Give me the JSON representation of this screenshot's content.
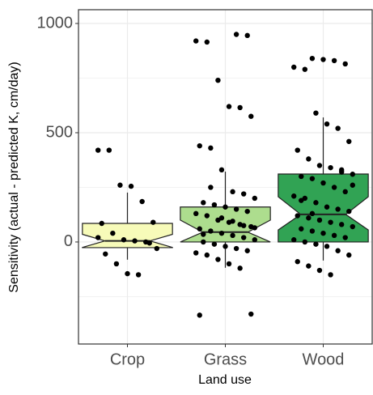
{
  "chart_data": {
    "type": "boxplot",
    "xlabel": "Land use",
    "ylabel": "Sensitivity (actual - predicted K, cm/day)",
    "categories": [
      "Crop",
      "Grass",
      "Wood"
    ],
    "colors": [
      "#f7fbb9",
      "#addd8e",
      "#31a354"
    ],
    "boxes": [
      {
        "whislo": -81,
        "q1": -26,
        "med": 5,
        "q3": 85,
        "whishi": 226,
        "notch_lo": -25,
        "notch_hi": 35
      },
      {
        "whislo": -118,
        "q1": 0,
        "med": 45,
        "q3": 160,
        "whishi": 322,
        "notch_lo": 0,
        "notch_hi": 100
      },
      {
        "whislo": -85,
        "q1": 0,
        "med": 126,
        "q3": 311,
        "whishi": 570,
        "notch_lo": 55,
        "notch_hi": 207
      }
    ],
    "points": [
      [
        420,
        420,
        260,
        255,
        185,
        90,
        85,
        40,
        10,
        5,
        0,
        -30,
        -55,
        -100,
        -145,
        -150,
        -5,
        20
      ],
      [
        950,
        945,
        920,
        915,
        740,
        620,
        615,
        575,
        440,
        430,
        330,
        230,
        220,
        200,
        180,
        170,
        160,
        150,
        140,
        130,
        120,
        100,
        90,
        80,
        70,
        60,
        50,
        40,
        30,
        20,
        10,
        0,
        -10,
        -20,
        -30,
        -40,
        -50,
        -60,
        -80,
        -100,
        -120,
        -330,
        -335,
        250,
        110,
        95,
        75,
        65,
        35
      ],
      [
        840,
        835,
        830,
        815,
        800,
        790,
        590,
        540,
        520,
        460,
        420,
        380,
        350,
        340,
        320,
        310,
        300,
        290,
        270,
        250,
        230,
        210,
        200,
        180,
        160,
        150,
        140,
        120,
        110,
        100,
        90,
        80,
        70,
        60,
        50,
        40,
        30,
        20,
        10,
        0,
        -10,
        -20,
        -40,
        -60,
        -90,
        -110,
        -130,
        -150,
        330,
        260,
        190,
        130
      ]
    ],
    "ylim": [
      -467,
      1063
    ],
    "yticks": [
      0,
      500,
      1000
    ],
    "yminor": [
      -250,
      250,
      750
    ],
    "grid": true
  }
}
